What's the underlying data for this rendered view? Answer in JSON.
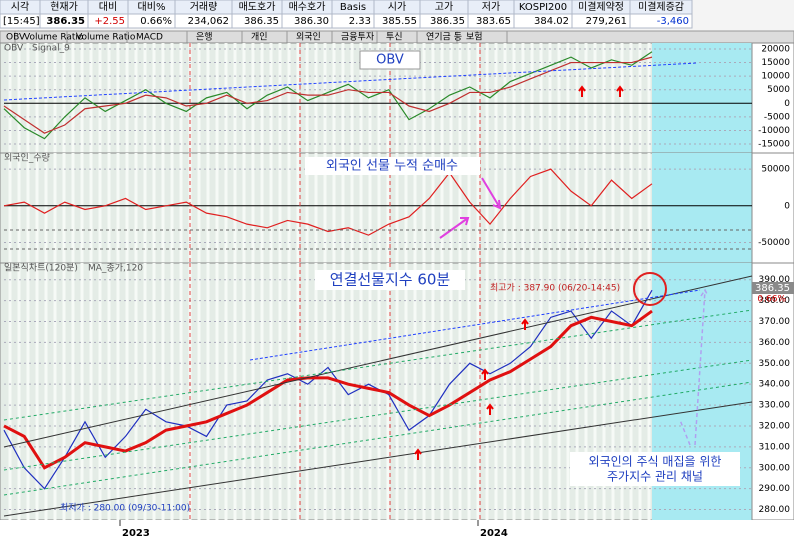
{
  "header": {
    "labels": [
      "시각",
      "현재가",
      "대비",
      "대비%",
      "거래량",
      "매도호가",
      "매수호가",
      "Basis",
      "시가",
      "고가",
      "저가",
      "KOSPI200",
      "미결제약정",
      "미결제증감"
    ],
    "values": [
      "[15:45]",
      "386.35",
      "+2.55",
      "0.66%",
      "234,062",
      "386.35",
      "386.30",
      "2.33",
      "385.55",
      "386.35",
      "383.65",
      "384.02",
      "279,261",
      "-3,460"
    ]
  },
  "tabs": [
    "OBV",
    "Volume Ratio",
    "Volume Ratio",
    "MACD",
    "은행",
    "개인",
    "외국인",
    "금융투자",
    "투신",
    "연기금 등",
    "보험"
  ],
  "chart_data": [
    {
      "type": "line",
      "title": "OBV",
      "subtitle": "Signal_9",
      "annotation": "OBV",
      "ylim": [
        -18300,
        22200
      ],
      "yticks": [
        20000,
        15000,
        10000,
        5000,
        0,
        -5000,
        -10000,
        -15000
      ],
      "series": [
        {
          "name": "OBV",
          "color": "#2a8a2a",
          "values": [
            -2000,
            -9000,
            -13000,
            -5000,
            2000,
            -3000,
            1000,
            5000,
            0,
            -3000,
            2000,
            4000,
            -2000,
            3000,
            6000,
            1000,
            4000,
            7000,
            2000,
            5000,
            -6000,
            -2000,
            3000,
            6000,
            2000,
            8000,
            11000,
            14000,
            17000,
            13000,
            16000,
            14000,
            19000
          ]
        },
        {
          "name": "Signal_9",
          "color": "#c03030",
          "values": [
            -1000,
            -6000,
            -11000,
            -8000,
            -2000,
            -1000,
            0,
            3000,
            2000,
            -1000,
            0,
            3000,
            0,
            1000,
            4000,
            3000,
            3000,
            5000,
            4000,
            4000,
            -1000,
            -3000,
            0,
            4000,
            4000,
            6000,
            9000,
            12000,
            15000,
            15000,
            15000,
            15000,
            17000
          ]
        }
      ]
    },
    {
      "type": "line",
      "title": "외국인_수량",
      "annotation": "외국인 선물 누적 순매수",
      "ylim": [
        -78000,
        72000
      ],
      "yticks": [
        50000,
        0,
        -50000
      ],
      "series": [
        {
          "name": "외국인_수량",
          "color": "#e02020",
          "values": [
            0,
            5000,
            -10000,
            5000,
            -5000,
            0,
            10000,
            -5000,
            0,
            5000,
            -10000,
            -15000,
            -25000,
            -30000,
            -20000,
            -25000,
            -35000,
            -30000,
            -40000,
            -25000,
            -15000,
            10000,
            45000,
            5000,
            -25000,
            10000,
            40000,
            50000,
            20000,
            0,
            35000,
            10000,
            30000
          ]
        }
      ]
    },
    {
      "type": "line",
      "title": "일본식차트(120분)",
      "subtitle": "MA_종가,120",
      "annotation": "연결선물지수 60분",
      "high_label": "최고가 : 387.90 (06/20-14:45)",
      "low_label": "최저가 : 280.00 (09/30-11:00)",
      "current": "386.35",
      "change": "0.66%",
      "note": [
        "외국인의 주식 매집을 위한",
        "주가지수 관리 채널"
      ],
      "x_labels": [
        "2023",
        "2024"
      ],
      "ylim": [
        275,
        398
      ],
      "yticks": [
        {
          "value": 390,
          "label": "390.00"
        },
        {
          "value": 380,
          "label": "380.00"
        },
        {
          "value": 370,
          "label": "370.00"
        },
        {
          "value": 360,
          "label": "360.00"
        },
        {
          "value": 350,
          "label": "350.00"
        },
        {
          "value": 340,
          "label": "340.00"
        },
        {
          "value": 330,
          "label": "330.00"
        },
        {
          "value": 320,
          "label": "320.00"
        },
        {
          "value": 310,
          "label": "310.00"
        },
        {
          "value": 300,
          "label": "300.00"
        },
        {
          "value": 290,
          "label": "290.00"
        },
        {
          "value": 280,
          "label": "280.00"
        }
      ],
      "series": [
        {
          "name": "일본식차트(120분)",
          "color": "#2030c0",
          "values": [
            318,
            300,
            290,
            305,
            322,
            305,
            315,
            328,
            322,
            320,
            315,
            330,
            332,
            342,
            345,
            340,
            348,
            335,
            340,
            335,
            318,
            325,
            340,
            350,
            345,
            350,
            358,
            372,
            375,
            362,
            375,
            368,
            385
          ]
        },
        {
          "name": "MA_종가,120",
          "color": "#e01010",
          "values": [
            320,
            315,
            300,
            305,
            312,
            310,
            308,
            312,
            318,
            320,
            322,
            326,
            330,
            336,
            342,
            343,
            343,
            340,
            338,
            336,
            330,
            325,
            330,
            336,
            342,
            346,
            352,
            358,
            368,
            372,
            370,
            368,
            375
          ]
        }
      ]
    }
  ]
}
